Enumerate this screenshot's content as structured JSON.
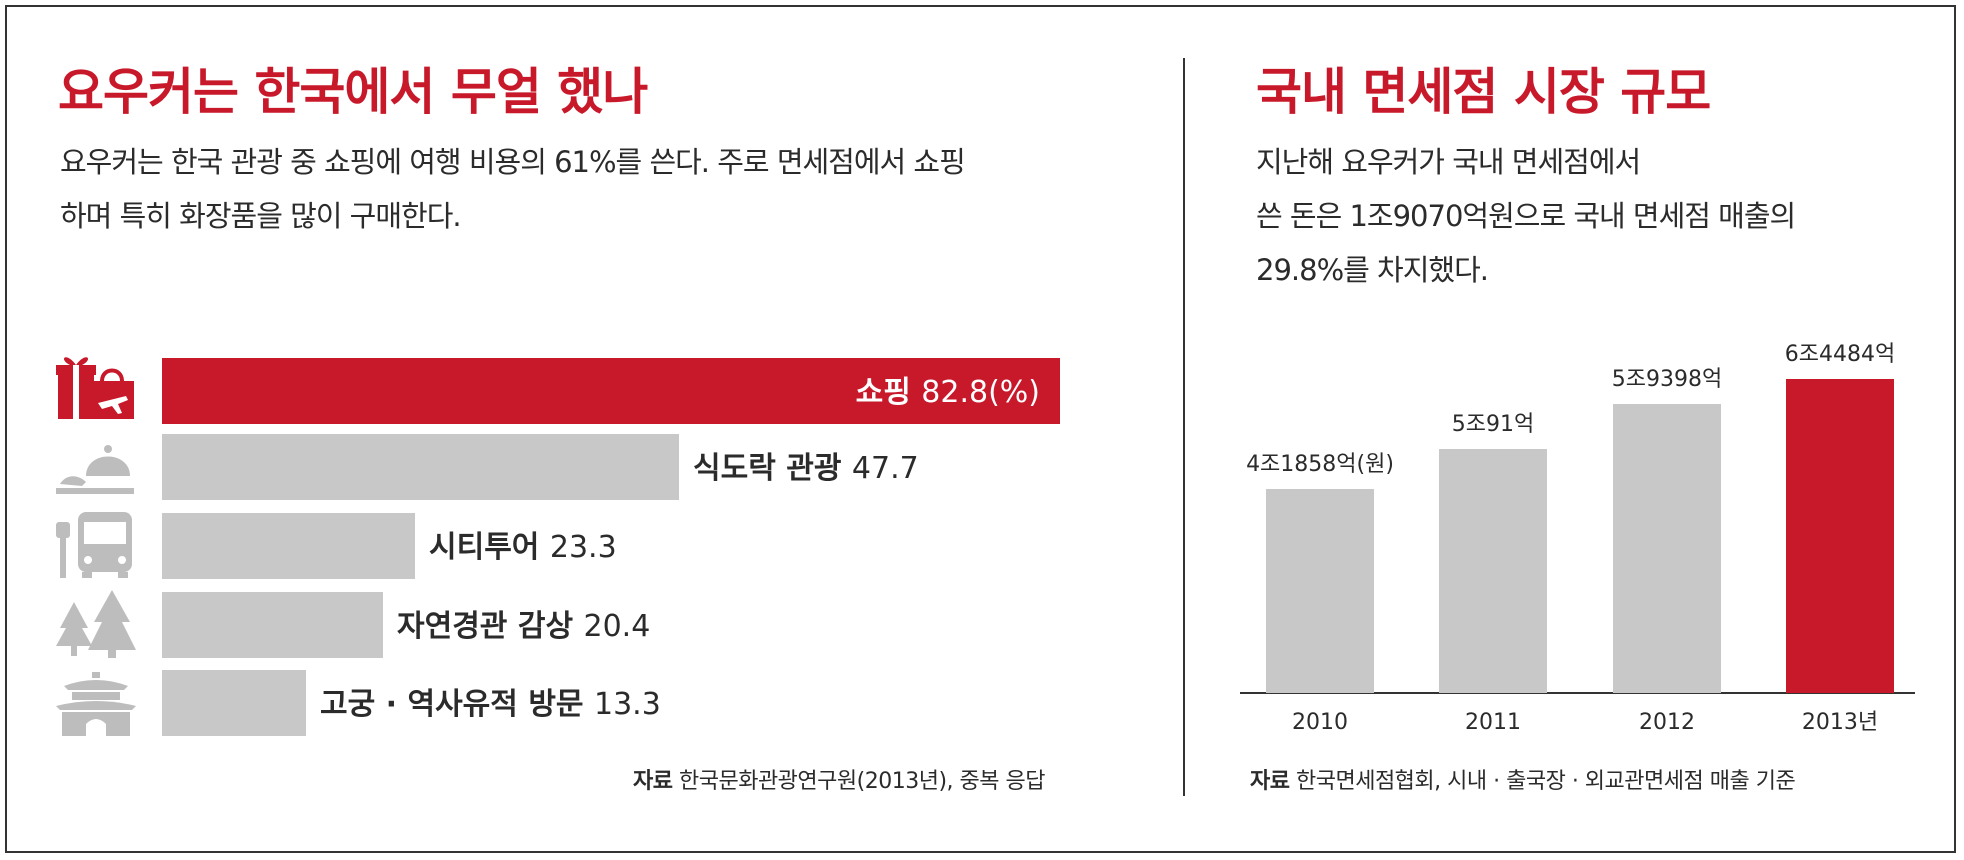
{
  "left": {
    "title": "요우커는 한국에서 무얼 했나",
    "description_line1": "요우커는 한국 관광 중 쇼핑에 여행 비용의 61%를 쓴다. 주로 면세점에서 쇼핑",
    "description_line2": "하며 특히 화장품을 많이 구매한다.",
    "source_label": "자료",
    "source_text": "한국문화관광연구원(2013년), 중복 응답",
    "icons": [
      "gift-shopping-bag-icon",
      "food-cloche-icon",
      "bus-icon",
      "trees-icon",
      "palace-icon"
    ]
  },
  "right": {
    "title": "국내 면세점 시장 규모",
    "description_line1": "지난해 요우커가 국내 면세점에서",
    "description_line2": "쓴 돈은 1조9070억원으로 국내 면세점 매출의",
    "description_line3": "29.8%를 차지했다.",
    "source_label": "자료",
    "source_text": "한국면세점협회, 시내 · 출국장 · 외교관면세점 매출 기준"
  },
  "colors": {
    "accent": "#c8192b",
    "bar_gray": "#c8c8c8",
    "icon_gray": "#bdbdbd",
    "text": "#2b2b2b"
  },
  "chart_data": [
    {
      "type": "bar",
      "orientation": "horizontal",
      "categories": [
        "쇼핑",
        "식도락 관광",
        "시티투어",
        "자연경관 감상",
        "고궁 · 역사유적 방문"
      ],
      "values": [
        82.8,
        47.7,
        23.3,
        20.4,
        13.3
      ],
      "value_labels": [
        "82.8(%)",
        "47.7",
        "23.3",
        "20.4",
        "13.3"
      ],
      "highlight_index": 0,
      "xlim": [
        0,
        82.8
      ]
    },
    {
      "type": "bar",
      "orientation": "vertical",
      "categories": [
        "2010",
        "2011",
        "2012",
        "2013년"
      ],
      "values": [
        41858,
        50091,
        59398,
        64484
      ],
      "value_labels": [
        "4조1858억(원)",
        "5조91억",
        "5조9398억",
        "6조4484억"
      ],
      "highlight_index": 3,
      "ylim": [
        0,
        64484
      ]
    }
  ]
}
